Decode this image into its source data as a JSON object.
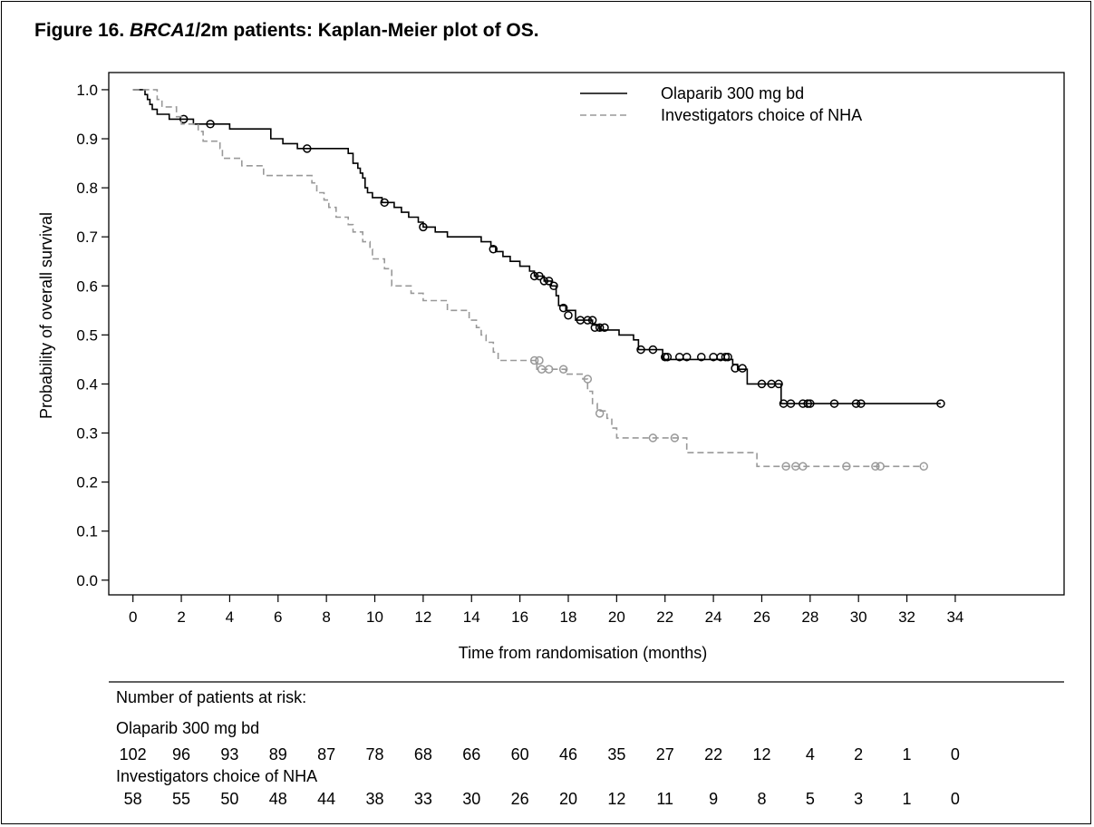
{
  "figure": {
    "title_prefix": "Figure 16. ",
    "title_italic": "BRCA1",
    "title_rest": "/2m patients: Kaplan-Meier plot of OS."
  },
  "chart_data": {
    "type": "line",
    "subtype": "kaplan-meier-step",
    "title": "Figure 16. BRCA1/2m patients: Kaplan-Meier plot of OS.",
    "xlabel": "Time from randomisation (months)",
    "ylabel": "Probability of overall survival",
    "xlim": [
      -1,
      38.5
    ],
    "ylim": [
      -0.03,
      1.035
    ],
    "xticks": [
      0,
      2,
      4,
      6,
      8,
      10,
      12,
      14,
      16,
      18,
      20,
      22,
      24,
      26,
      28,
      30,
      32,
      34
    ],
    "xtick_labels": [
      "0",
      "2",
      "4",
      "6",
      "8",
      "10",
      "12",
      "14",
      "16",
      "18",
      "20",
      "22",
      "24",
      "26",
      "28",
      "30",
      "32",
      "34"
    ],
    "yticks": [
      0,
      0.1,
      0.2,
      0.3,
      0.4,
      0.5,
      0.6,
      0.7,
      0.8,
      0.9,
      1.0
    ],
    "ytick_labels": [
      "0.0",
      "0.1",
      "0.2",
      "0.3",
      "0.4",
      "0.5",
      "0.6",
      "0.7",
      "0.8",
      "0.9",
      "1.0"
    ],
    "grid": false,
    "legend": "top-right",
    "series": [
      {
        "name": "Olaparib 300 mg bd",
        "color": "#000000",
        "dash": "solid",
        "steps": [
          [
            0,
            1.0
          ],
          [
            0.5,
            0.99
          ],
          [
            0.6,
            0.98
          ],
          [
            0.7,
            0.97
          ],
          [
            0.8,
            0.96
          ],
          [
            1.0,
            0.95
          ],
          [
            1.5,
            0.94
          ],
          [
            2.5,
            0.93
          ],
          [
            4.0,
            0.92
          ],
          [
            5.7,
            0.9
          ],
          [
            6.2,
            0.89
          ],
          [
            6.8,
            0.88
          ],
          [
            8.9,
            0.87
          ],
          [
            9.1,
            0.85
          ],
          [
            9.3,
            0.84
          ],
          [
            9.4,
            0.83
          ],
          [
            9.5,
            0.82
          ],
          [
            9.6,
            0.8
          ],
          [
            9.7,
            0.79
          ],
          [
            9.9,
            0.78
          ],
          [
            10.3,
            0.77
          ],
          [
            10.8,
            0.76
          ],
          [
            11.1,
            0.75
          ],
          [
            11.4,
            0.74
          ],
          [
            11.8,
            0.73
          ],
          [
            12.0,
            0.72
          ],
          [
            12.5,
            0.71
          ],
          [
            13.0,
            0.7
          ],
          [
            14.4,
            0.69
          ],
          [
            14.8,
            0.68
          ],
          [
            15.0,
            0.67
          ],
          [
            15.3,
            0.66
          ],
          [
            15.6,
            0.65
          ],
          [
            16.0,
            0.64
          ],
          [
            16.4,
            0.63
          ],
          [
            16.6,
            0.62
          ],
          [
            17.0,
            0.61
          ],
          [
            17.3,
            0.6
          ],
          [
            17.5,
            0.58
          ],
          [
            17.6,
            0.56
          ],
          [
            17.9,
            0.55
          ],
          [
            18.3,
            0.53
          ],
          [
            19.0,
            0.52
          ],
          [
            19.3,
            0.51
          ],
          [
            20.1,
            0.5
          ],
          [
            20.7,
            0.49
          ],
          [
            20.9,
            0.47
          ],
          [
            21.9,
            0.45
          ],
          [
            24.8,
            0.44
          ],
          [
            25.0,
            0.43
          ],
          [
            25.4,
            0.4
          ],
          [
            26.8,
            0.36
          ],
          [
            33.4,
            0.36
          ]
        ],
        "censored": [
          [
            2.1,
            0.94
          ],
          [
            3.2,
            0.93
          ],
          [
            7.2,
            0.88
          ],
          [
            10.4,
            0.77
          ],
          [
            12.0,
            0.72
          ],
          [
            14.9,
            0.675
          ],
          [
            16.6,
            0.62
          ],
          [
            16.8,
            0.62
          ],
          [
            17.0,
            0.61
          ],
          [
            17.2,
            0.61
          ],
          [
            17.4,
            0.6
          ],
          [
            17.8,
            0.555
          ],
          [
            18.0,
            0.54
          ],
          [
            18.5,
            0.53
          ],
          [
            18.8,
            0.53
          ],
          [
            19.0,
            0.53
          ],
          [
            19.1,
            0.515
          ],
          [
            19.3,
            0.515
          ],
          [
            19.5,
            0.515
          ],
          [
            21.0,
            0.47
          ],
          [
            21.5,
            0.47
          ],
          [
            22.0,
            0.455
          ],
          [
            22.1,
            0.455
          ],
          [
            22.6,
            0.455
          ],
          [
            22.9,
            0.455
          ],
          [
            23.5,
            0.455
          ],
          [
            24.0,
            0.455
          ],
          [
            24.3,
            0.455
          ],
          [
            24.5,
            0.455
          ],
          [
            24.6,
            0.455
          ],
          [
            24.9,
            0.432
          ],
          [
            25.2,
            0.432
          ],
          [
            26.0,
            0.4
          ],
          [
            26.4,
            0.4
          ],
          [
            26.7,
            0.4
          ],
          [
            26.9,
            0.36
          ],
          [
            27.2,
            0.36
          ],
          [
            27.7,
            0.36
          ],
          [
            27.9,
            0.36
          ],
          [
            28.0,
            0.36
          ],
          [
            29.0,
            0.36
          ],
          [
            29.9,
            0.36
          ],
          [
            30.1,
            0.36
          ],
          [
            33.4,
            0.36
          ]
        ]
      },
      {
        "name": "Investigators choice of NHA",
        "color": "#999999",
        "dash": "dashed",
        "steps": [
          [
            0,
            1.0
          ],
          [
            1.0,
            0.98
          ],
          [
            1.2,
            0.965
          ],
          [
            1.8,
            0.945
          ],
          [
            2.0,
            0.93
          ],
          [
            2.7,
            0.915
          ],
          [
            2.9,
            0.895
          ],
          [
            3.6,
            0.88
          ],
          [
            3.7,
            0.86
          ],
          [
            4.5,
            0.845
          ],
          [
            5.4,
            0.825
          ],
          [
            7.4,
            0.81
          ],
          [
            7.6,
            0.79
          ],
          [
            7.9,
            0.775
          ],
          [
            8.1,
            0.76
          ],
          [
            8.4,
            0.74
          ],
          [
            8.9,
            0.725
          ],
          [
            9.1,
            0.71
          ],
          [
            9.5,
            0.69
          ],
          [
            9.8,
            0.675
          ],
          [
            9.9,
            0.655
          ],
          [
            10.4,
            0.635
          ],
          [
            10.7,
            0.6
          ],
          [
            11.5,
            0.585
          ],
          [
            12.0,
            0.57
          ],
          [
            13.0,
            0.55
          ],
          [
            13.9,
            0.53
          ],
          [
            14.2,
            0.515
          ],
          [
            14.4,
            0.5
          ],
          [
            14.6,
            0.485
          ],
          [
            14.9,
            0.465
          ],
          [
            15.1,
            0.448
          ],
          [
            16.7,
            0.43
          ],
          [
            17.9,
            0.42
          ],
          [
            18.6,
            0.41
          ],
          [
            18.8,
            0.385
          ],
          [
            19.0,
            0.36
          ],
          [
            19.2,
            0.345
          ],
          [
            19.6,
            0.33
          ],
          [
            19.8,
            0.31
          ],
          [
            20.0,
            0.29
          ],
          [
            22.9,
            0.26
          ],
          [
            25.8,
            0.232
          ],
          [
            32.7,
            0.232
          ]
        ],
        "censored": [
          [
            16.6,
            0.448
          ],
          [
            16.8,
            0.448
          ],
          [
            16.9,
            0.43
          ],
          [
            17.2,
            0.43
          ],
          [
            17.8,
            0.43
          ],
          [
            18.8,
            0.41
          ],
          [
            19.3,
            0.34
          ],
          [
            21.5,
            0.29
          ],
          [
            22.4,
            0.29
          ],
          [
            27.0,
            0.232
          ],
          [
            27.4,
            0.232
          ],
          [
            27.7,
            0.232
          ],
          [
            29.5,
            0.232
          ],
          [
            30.7,
            0.232
          ],
          [
            30.9,
            0.232
          ],
          [
            32.7,
            0.232
          ]
        ]
      }
    ]
  },
  "at_risk": {
    "heading": "Number of patients at risk:",
    "groups": [
      {
        "label": "Olaparib 300 mg bd",
        "counts": [
          "102",
          "96",
          "93",
          "89",
          "87",
          "78",
          "68",
          "66",
          "60",
          "46",
          "35",
          "27",
          "22",
          "12",
          "4",
          "2",
          "1",
          "0"
        ]
      },
      {
        "label": "Investigators choice of NHA",
        "counts": [
          "58",
          "55",
          "50",
          "48",
          "44",
          "38",
          "33",
          "30",
          "26",
          "20",
          "12",
          "11",
          "9",
          "8",
          "5",
          "3",
          "1",
          "0"
        ]
      }
    ]
  }
}
